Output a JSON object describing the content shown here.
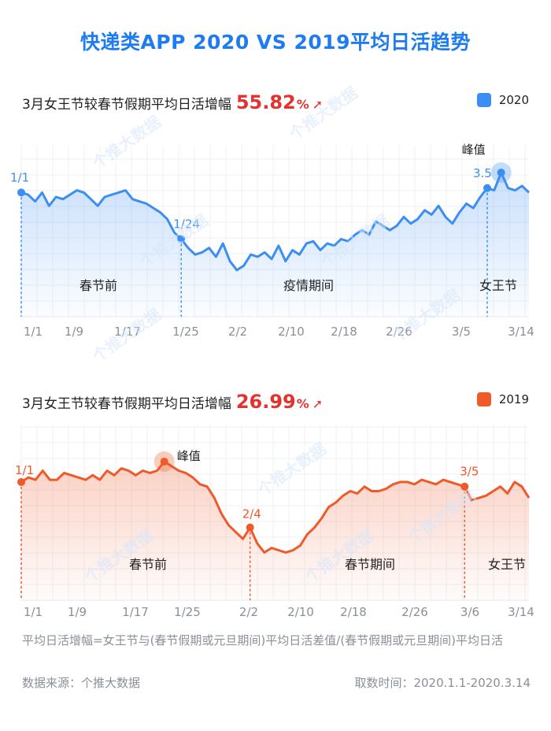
{
  "title": "快递类APP 2020 VS 2019平均日活趋势",
  "watermark": "个推大数据",
  "charts": [
    {
      "heading": "3月女王节较春节假期平均日活增幅",
      "growth": "55.82",
      "growth_unit": "%",
      "legend": "2020",
      "color": "#3c8ef3",
      "phases": [
        "春节前",
        "疫情期间",
        "女王节"
      ],
      "markers": [
        {
          "label": "1/1",
          "dashed": true
        },
        {
          "label": "1/24",
          "dashed": true
        },
        {
          "label": "3.5",
          "dashed": true
        },
        {
          "label": "峰值",
          "dashed": false
        }
      ]
    },
    {
      "heading": "3月女王节较春节假期平均日活增幅",
      "growth": "26.99",
      "growth_unit": "%",
      "legend": "2019",
      "color": "#ef5a2a",
      "phases": [
        "春节前",
        "春节期间",
        "女王节"
      ],
      "markers": [
        {
          "label": "1/1",
          "dashed": true
        },
        {
          "label": "峰值",
          "dashed": false
        },
        {
          "label": "2/4",
          "dashed": true
        },
        {
          "label": "3/5",
          "dashed": true
        }
      ]
    }
  ],
  "chart_data": [
    {
      "type": "area",
      "series": [
        {
          "name": "2020",
          "color": "#3c8ef3",
          "values": [
            76,
            75,
            72,
            76,
            70,
            74,
            73,
            75,
            77,
            76,
            73,
            70,
            74,
            75,
            76,
            77,
            73,
            72,
            71,
            69,
            67,
            64,
            58,
            55,
            51,
            48,
            49,
            51,
            47,
            53,
            45,
            41,
            43,
            48,
            47,
            49,
            46,
            52,
            45,
            50,
            48,
            53,
            54,
            50,
            53,
            52,
            55,
            54,
            57,
            59,
            57,
            63,
            61,
            59,
            61,
            65,
            62,
            64,
            68,
            66,
            70,
            65,
            62,
            67,
            71,
            69,
            74,
            78,
            77,
            85,
            78,
            77,
            79,
            76
          ]
        }
      ],
      "x_ticks": [
        "1/1",
        "1/9",
        "1/17",
        "1/25",
        "2/2",
        "2/10",
        "2/18",
        "2/26",
        "3/5",
        "3/14"
      ],
      "annotations": [
        "1/1",
        "1/24",
        "3.5",
        "峰值"
      ],
      "xlabel": "",
      "ylabel": "",
      "grid": true
    },
    {
      "type": "area",
      "series": [
        {
          "name": "2019",
          "color": "#ef5a2a",
          "values": [
            72,
            74,
            73,
            77,
            73,
            73,
            76,
            75,
            74,
            73,
            75,
            73,
            77,
            75,
            78,
            77,
            75,
            77,
            76,
            77,
            81,
            79,
            77,
            76,
            74,
            71,
            70,
            65,
            58,
            53,
            50,
            47,
            52,
            45,
            41,
            43,
            42,
            41,
            42,
            44,
            49,
            52,
            56,
            61,
            63,
            66,
            68,
            67,
            70,
            68,
            68,
            69,
            71,
            72,
            72,
            71,
            73,
            72,
            71,
            73,
            72,
            71,
            70,
            64,
            65,
            66,
            68,
            70,
            67,
            72,
            70,
            65
          ]
        }
      ],
      "x_ticks": [
        "1/1",
        "1/9",
        "1/17",
        "1/25",
        "2/2",
        "2/10",
        "2/18",
        "2/26",
        "3/6",
        "3/14"
      ],
      "annotations": [
        "1/1",
        "峰值",
        "2/4",
        "3/5"
      ],
      "xlabel": "",
      "ylabel": "",
      "grid": true
    }
  ],
  "footer": {
    "note": "平均日活增幅=女王节与(春节假期或元旦期间)平均日活差值/(春节假期或元旦期间)平均日活",
    "source": "数据来源：个推大数据",
    "period": "取数时间：2020.1.1-2020.3.14"
  }
}
